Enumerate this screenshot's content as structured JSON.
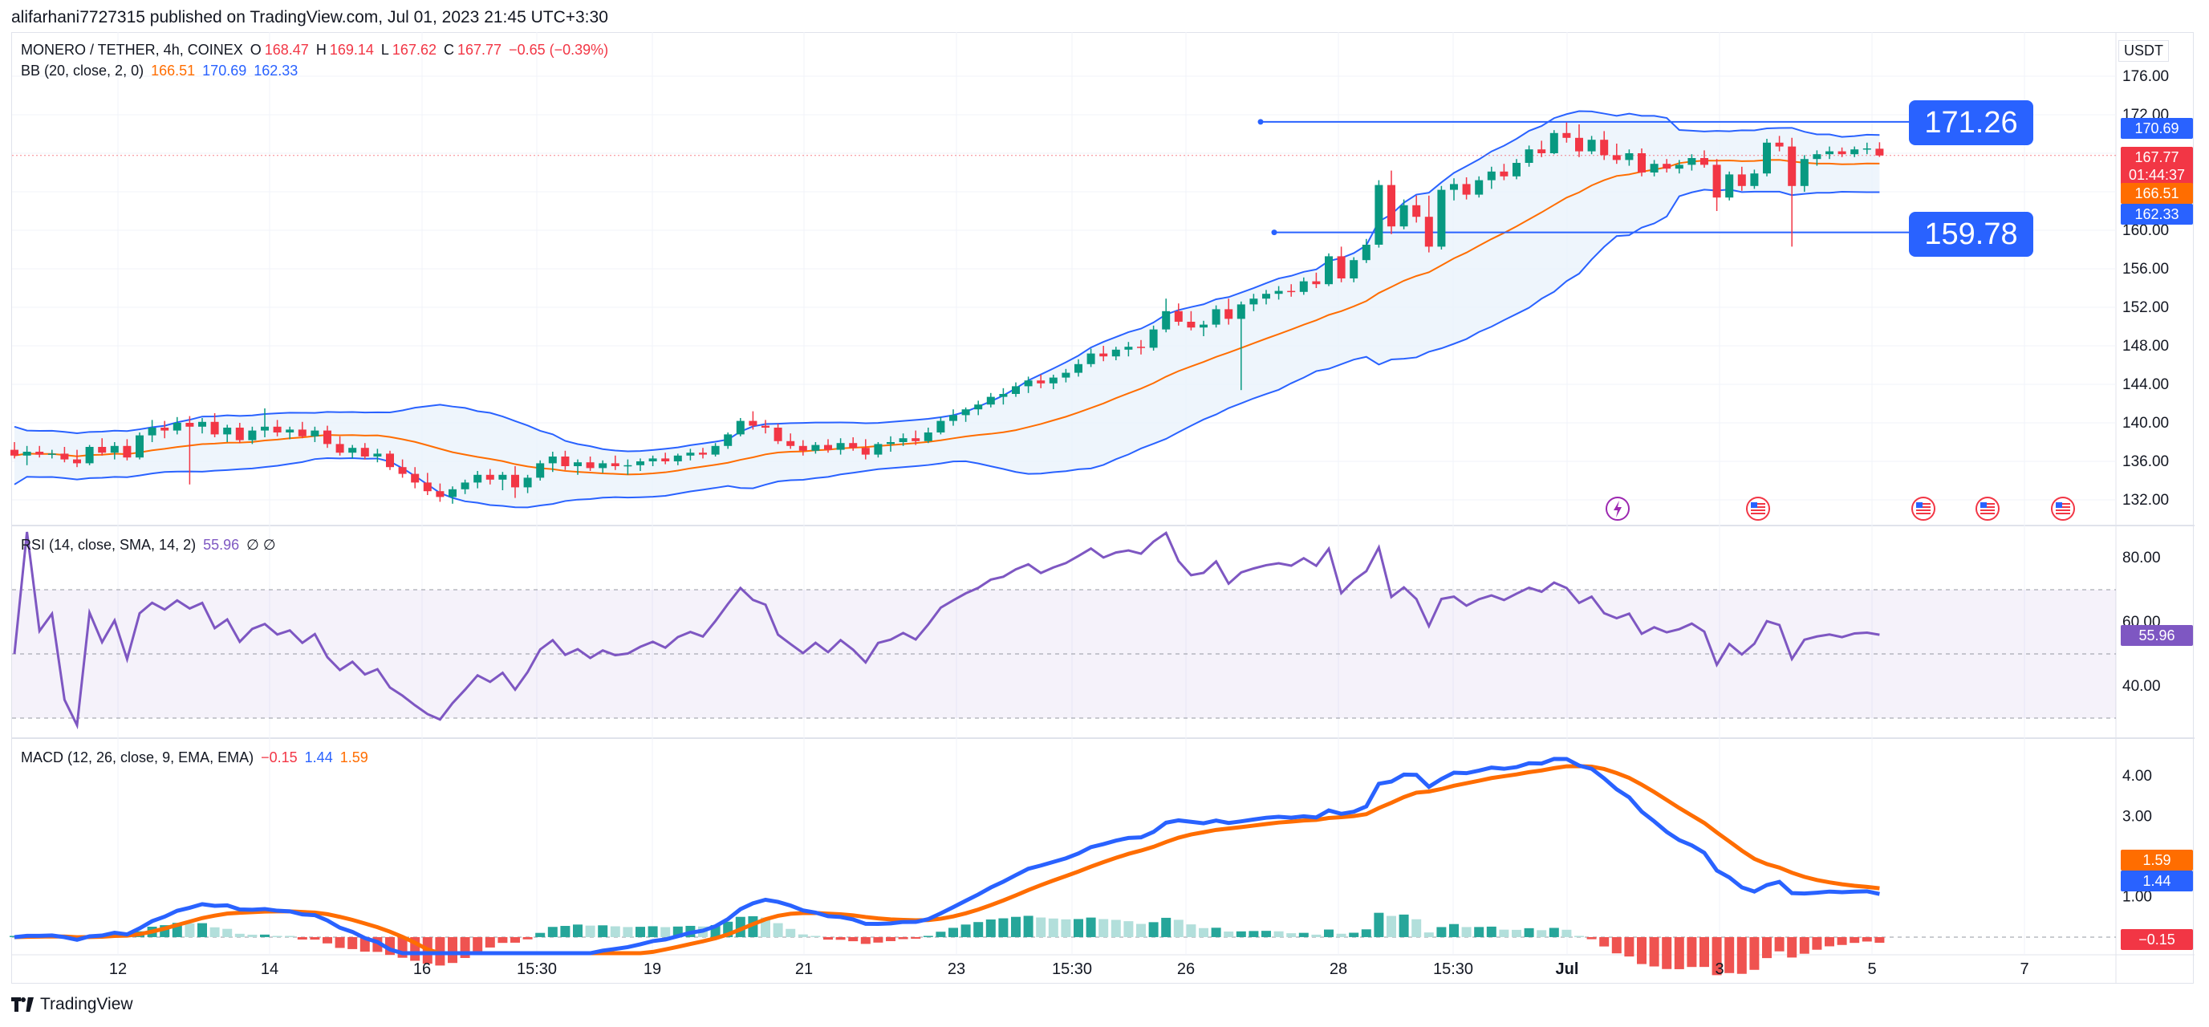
{
  "header": {
    "publish_line": "alifarhani7727315 published on TradingView.com, Jul 01, 2023 21:45 UTC+3:30"
  },
  "footer": {
    "brand": "TradingView"
  },
  "price_pane": {
    "symbol_line": "MONERO / TETHER, 4h, COINEX",
    "ohlc": {
      "o_label": "O",
      "o": "168.47",
      "h_label": "H",
      "h": "169.14",
      "l_label": "L",
      "l": "167.62",
      "c_label": "C",
      "c": "167.77",
      "change": "−0.65 (−0.39%)"
    },
    "bb_label": "BB (20, close, 2, 0)",
    "bb_values": {
      "basis": "166.51",
      "upper": "170.69",
      "lower": "162.33"
    },
    "currency": "USDT",
    "axis_ticks": [
      "176.00",
      "172.00",
      "168.00",
      "164.00",
      "160.00",
      "156.00",
      "152.00",
      "148.00",
      "144.00",
      "140.00",
      "136.00",
      "132.00"
    ],
    "tags": {
      "upper": "170.69",
      "close": "167.77",
      "countdown": "01:44:37",
      "basis": "166.51",
      "lower": "162.33"
    },
    "horizontal_levels": [
      "171.26",
      "159.78"
    ],
    "colors": {
      "up": "#089981",
      "down": "#f23645",
      "bb_band": "#2962ff",
      "bb_basis": "#ff6d00",
      "bb_fill": "#eaf3fb"
    }
  },
  "rsi_pane": {
    "label": "RSI (14, close, SMA, 14, 2)",
    "value": "55.96",
    "extras": "∅  ∅",
    "axis_ticks": [
      "80.00",
      "60.00",
      "40.00"
    ],
    "tag": "55.96",
    "color": "#7e57c2"
  },
  "macd_pane": {
    "label": "MACD (12, 26, close, 9, EMA, EMA)",
    "values": {
      "hist": "−0.15",
      "macd": "1.44",
      "signal": "1.59"
    },
    "axis_ticks": [
      "4.00",
      "3.00",
      "1.00"
    ],
    "tags": {
      "signal": "1.59",
      "macd": "1.44",
      "hist": "−0.15"
    },
    "colors": {
      "macd": "#2962ff",
      "signal": "#ff6d00",
      "hist_up_strong": "#26a69a",
      "hist_up_weak": "#b2dfdb",
      "hist_down": "#ef5350"
    }
  },
  "time_axis": [
    "12",
    "14",
    "16",
    "15:30",
    "19",
    "21",
    "23",
    "15:30",
    "26",
    "28",
    "15:30",
    "Jul",
    "3",
    "5",
    "7"
  ],
  "event_icons": [
    "lightning-icon",
    "us-flag-icon",
    "us-flag-icon",
    "us-flag-icon",
    "us-flag-icon"
  ],
  "chart_data": {
    "type": "candlestick",
    "title": "MONERO / TETHER, 4h, COINEX",
    "ylabel": "USDT",
    "ylim": [
      130,
      180
    ],
    "candles_ohlc": [
      [
        137.2,
        138.0,
        136.3,
        136.6
      ],
      [
        136.6,
        137.6,
        135.6,
        137.0
      ],
      [
        137.0,
        137.6,
        136.4,
        136.7
      ],
      [
        136.7,
        137.2,
        136.3,
        136.8
      ],
      [
        136.8,
        137.5,
        135.9,
        136.2
      ],
      [
        136.2,
        137.2,
        135.4,
        135.8
      ],
      [
        135.8,
        137.7,
        135.6,
        137.5
      ],
      [
        137.5,
        138.4,
        136.6,
        136.9
      ],
      [
        136.9,
        138.0,
        136.2,
        137.6
      ],
      [
        137.6,
        138.3,
        136.1,
        136.4
      ],
      [
        136.4,
        139.0,
        136.2,
        138.7
      ],
      [
        138.7,
        140.3,
        138.0,
        139.5
      ],
      [
        139.5,
        140.2,
        138.4,
        139.2
      ],
      [
        139.2,
        140.6,
        138.8,
        140.0
      ],
      [
        140.0,
        140.7,
        133.6,
        139.6
      ],
      [
        139.6,
        140.5,
        138.9,
        140.1
      ],
      [
        140.1,
        141.0,
        138.5,
        138.8
      ],
      [
        138.8,
        139.8,
        138.0,
        139.5
      ],
      [
        139.5,
        140.0,
        137.9,
        138.2
      ],
      [
        138.2,
        139.6,
        137.8,
        139.2
      ],
      [
        139.2,
        141.5,
        138.5,
        139.6
      ],
      [
        139.6,
        140.3,
        138.6,
        139.0
      ],
      [
        139.0,
        139.6,
        138.3,
        139.3
      ],
      [
        139.3,
        140.1,
        138.4,
        138.6
      ],
      [
        138.6,
        139.6,
        138.0,
        139.2
      ],
      [
        139.2,
        139.7,
        137.4,
        137.8
      ],
      [
        137.8,
        138.6,
        136.6,
        136.9
      ],
      [
        136.9,
        137.7,
        136.3,
        137.4
      ],
      [
        137.4,
        137.9,
        136.2,
        136.5
      ],
      [
        136.5,
        137.3,
        135.9,
        136.8
      ],
      [
        136.8,
        137.1,
        135.1,
        135.4
      ],
      [
        135.4,
        136.2,
        134.3,
        134.7
      ],
      [
        134.7,
        135.4,
        133.2,
        133.8
      ],
      [
        133.8,
        134.8,
        132.5,
        132.9
      ],
      [
        132.9,
        133.7,
        131.8,
        132.3
      ],
      [
        132.3,
        133.4,
        131.6,
        133.1
      ],
      [
        133.1,
        134.1,
        132.6,
        133.8
      ],
      [
        133.8,
        135.0,
        133.2,
        134.6
      ],
      [
        134.6,
        135.2,
        133.6,
        134.1
      ],
      [
        134.1,
        134.9,
        133.0,
        134.6
      ],
      [
        134.6,
        135.5,
        132.2,
        133.3
      ],
      [
        133.3,
        134.6,
        132.7,
        134.3
      ],
      [
        134.3,
        136.1,
        134.0,
        135.8
      ],
      [
        135.8,
        137.0,
        134.9,
        136.5
      ],
      [
        136.5,
        137.1,
        135.1,
        135.5
      ],
      [
        135.5,
        136.2,
        134.6,
        135.9
      ],
      [
        135.9,
        136.5,
        135.0,
        135.3
      ],
      [
        135.3,
        136.1,
        134.8,
        135.8
      ],
      [
        135.8,
        136.6,
        135.1,
        135.5
      ],
      [
        135.5,
        136.2,
        134.6,
        135.6
      ],
      [
        135.6,
        136.3,
        135.0,
        136.0
      ],
      [
        136.0,
        136.6,
        135.5,
        136.3
      ],
      [
        136.3,
        136.9,
        135.7,
        136.0
      ],
      [
        136.0,
        136.8,
        135.6,
        136.6
      ],
      [
        136.6,
        137.3,
        136.1,
        136.9
      ],
      [
        136.9,
        137.4,
        136.3,
        136.7
      ],
      [
        136.7,
        137.9,
        136.5,
        137.6
      ],
      [
        137.6,
        139.0,
        137.3,
        138.8
      ],
      [
        138.8,
        140.5,
        138.6,
        140.2
      ],
      [
        140.2,
        141.2,
        139.3,
        139.7
      ],
      [
        139.7,
        140.3,
        138.9,
        139.5
      ],
      [
        139.5,
        139.9,
        137.8,
        138.1
      ],
      [
        138.1,
        138.9,
        137.3,
        137.6
      ],
      [
        137.6,
        138.2,
        136.6,
        137.1
      ],
      [
        137.1,
        138.0,
        136.8,
        137.7
      ],
      [
        137.7,
        138.3,
        136.9,
        137.2
      ],
      [
        137.2,
        138.4,
        136.7,
        137.9
      ],
      [
        137.9,
        138.5,
        137.1,
        137.4
      ],
      [
        137.4,
        138.3,
        136.2,
        136.7
      ],
      [
        136.7,
        138.0,
        136.4,
        137.8
      ],
      [
        137.8,
        138.6,
        137.0,
        138.0
      ],
      [
        138.0,
        138.9,
        137.6,
        138.4
      ],
      [
        138.4,
        139.2,
        137.7,
        138.1
      ],
      [
        138.1,
        139.5,
        137.9,
        139.0
      ],
      [
        139.0,
        140.6,
        138.8,
        140.2
      ],
      [
        140.2,
        141.4,
        139.7,
        140.8
      ],
      [
        140.8,
        141.6,
        140.1,
        141.4
      ],
      [
        141.4,
        142.3,
        140.8,
        141.9
      ],
      [
        141.9,
        143.1,
        141.6,
        142.7
      ],
      [
        142.7,
        143.6,
        141.9,
        143.0
      ],
      [
        143.0,
        144.2,
        142.7,
        143.8
      ],
      [
        143.8,
        144.8,
        143.1,
        144.4
      ],
      [
        144.4,
        145.0,
        143.6,
        144.1
      ],
      [
        144.1,
        145.0,
        143.5,
        144.7
      ],
      [
        144.7,
        145.6,
        144.2,
        145.2
      ],
      [
        145.2,
        146.6,
        144.8,
        146.1
      ],
      [
        146.1,
        147.7,
        145.8,
        147.2
      ],
      [
        147.2,
        148.0,
        146.4,
        146.9
      ],
      [
        146.9,
        147.9,
        146.5,
        147.6
      ],
      [
        147.6,
        148.4,
        146.9,
        147.9
      ],
      [
        147.9,
        148.6,
        147.1,
        147.8
      ],
      [
        147.8,
        150.1,
        147.5,
        149.7
      ],
      [
        149.7,
        152.9,
        149.4,
        151.6
      ],
      [
        151.6,
        152.4,
        150.1,
        150.5
      ],
      [
        150.5,
        151.6,
        149.6,
        149.9
      ],
      [
        149.9,
        150.6,
        149.0,
        150.2
      ],
      [
        150.2,
        152.2,
        149.9,
        151.8
      ],
      [
        151.8,
        152.9,
        150.2,
        150.8
      ],
      [
        150.8,
        152.6,
        143.4,
        152.3
      ],
      [
        152.3,
        153.4,
        151.6,
        152.9
      ],
      [
        152.9,
        153.8,
        152.3,
        153.4
      ],
      [
        153.4,
        154.2,
        152.8,
        153.7
      ],
      [
        153.7,
        154.4,
        153.1,
        153.6
      ],
      [
        153.6,
        155.1,
        153.3,
        154.7
      ],
      [
        154.7,
        155.6,
        154.0,
        154.4
      ],
      [
        154.4,
        157.6,
        154.2,
        157.3
      ],
      [
        157.3,
        158.3,
        154.6,
        155.0
      ],
      [
        155.0,
        157.2,
        154.6,
        156.9
      ],
      [
        156.9,
        159.1,
        156.6,
        158.5
      ],
      [
        158.5,
        165.2,
        158.2,
        164.7
      ],
      [
        164.7,
        166.2,
        159.6,
        160.4
      ],
      [
        160.4,
        163.2,
        160.1,
        162.6
      ],
      [
        162.6,
        163.6,
        160.8,
        161.4
      ],
      [
        161.4,
        163.6,
        157.7,
        158.3
      ],
      [
        158.3,
        164.6,
        158.0,
        164.2
      ],
      [
        164.2,
        165.4,
        163.1,
        164.8
      ],
      [
        164.8,
        165.5,
        163.2,
        163.7
      ],
      [
        163.7,
        165.6,
        163.4,
        165.2
      ],
      [
        165.2,
        166.6,
        164.3,
        166.1
      ],
      [
        166.1,
        166.9,
        165.2,
        165.6
      ],
      [
        165.6,
        167.4,
        165.3,
        167.0
      ],
      [
        167.0,
        168.8,
        166.6,
        168.4
      ],
      [
        168.4,
        169.3,
        167.6,
        168.0
      ],
      [
        168.0,
        170.4,
        167.9,
        170.1
      ],
      [
        170.1,
        171.2,
        169.1,
        169.6
      ],
      [
        169.6,
        171.0,
        167.6,
        168.2
      ],
      [
        168.2,
        169.8,
        167.9,
        169.4
      ],
      [
        169.4,
        170.3,
        167.3,
        167.8
      ],
      [
        167.8,
        169.0,
        166.9,
        167.3
      ],
      [
        167.3,
        168.4,
        166.7,
        168.0
      ],
      [
        168.0,
        168.5,
        165.6,
        166.0
      ],
      [
        166.0,
        167.3,
        165.6,
        166.9
      ],
      [
        166.9,
        167.4,
        166.0,
        166.4
      ],
      [
        166.4,
        167.3,
        165.9,
        166.8
      ],
      [
        166.8,
        167.9,
        166.2,
        167.5
      ],
      [
        167.5,
        168.3,
        166.5,
        166.8
      ],
      [
        166.8,
        167.4,
        162.0,
        163.4
      ],
      [
        163.4,
        166.1,
        163.1,
        165.8
      ],
      [
        165.8,
        166.6,
        164.1,
        164.6
      ],
      [
        164.6,
        166.3,
        164.3,
        165.9
      ],
      [
        165.9,
        169.5,
        165.6,
        169.1
      ],
      [
        169.1,
        169.8,
        168.2,
        168.7
      ],
      [
        168.7,
        169.6,
        158.3,
        164.6
      ],
      [
        164.6,
        167.8,
        164.0,
        167.4
      ],
      [
        167.4,
        168.3,
        166.7,
        167.9
      ],
      [
        167.9,
        168.7,
        167.4,
        168.2
      ],
      [
        168.2,
        168.6,
        167.6,
        167.9
      ],
      [
        167.9,
        168.7,
        167.6,
        168.4
      ],
      [
        168.4,
        169.1,
        167.9,
        168.5
      ],
      [
        168.47,
        169.14,
        167.62,
        167.77
      ]
    ],
    "bollinger": {
      "basis_last": 166.51,
      "upper_last": 170.69,
      "lower_last": 162.33
    },
    "rsi_last": 55.96,
    "macd_last": {
      "macd": 1.44,
      "signal": 1.59,
      "hist": -0.15
    }
  }
}
